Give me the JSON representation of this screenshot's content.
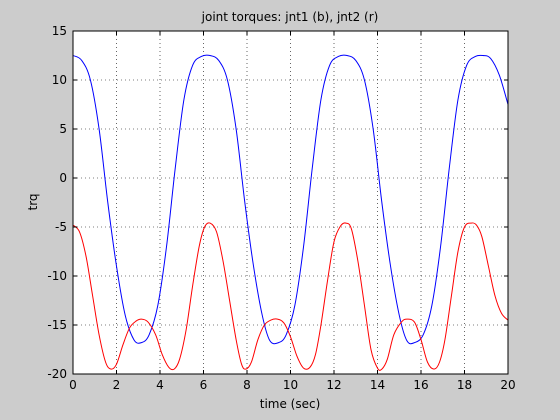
{
  "chart_data": {
    "type": "line",
    "title": "joint torques: jnt1 (b), jnt2 (r)",
    "xlabel": "time (sec)",
    "ylabel": "trq",
    "xlim": [
      0,
      20
    ],
    "ylim": [
      -20,
      15
    ],
    "xticks": [
      0,
      2,
      4,
      6,
      8,
      10,
      12,
      14,
      16,
      18,
      20
    ],
    "yticks": [
      -20,
      -15,
      -10,
      -5,
      0,
      5,
      10,
      15
    ],
    "grid": true,
    "colors": {
      "background": "#cccccc",
      "plot_bg": "#ffffff",
      "axes": "#000000"
    },
    "series": [
      {
        "color": "#0000ff",
        "x": [
          0,
          0.4,
          0.8,
          1.2,
          1.6,
          2.0,
          2.4,
          2.8,
          3.15,
          3.5,
          3.9,
          4.3,
          4.7,
          5.1,
          5.5,
          5.9,
          6.3,
          6.7,
          7.1,
          7.5,
          7.9,
          8.3,
          8.7,
          9.05,
          9.45,
          9.8,
          10.2,
          10.6,
          11.0,
          11.4,
          11.8,
          12.2,
          12.6,
          13.0,
          13.4,
          13.8,
          14.2,
          14.6,
          15.0,
          15.35,
          15.7,
          16.1,
          16.5,
          16.9,
          17.3,
          17.7,
          18.1,
          18.5,
          18.85,
          19.2,
          19.6,
          20.0
        ],
        "y": [
          12.5,
          12.0,
          10.0,
          5.0,
          -2.5,
          -9.0,
          -14.0,
          -16.5,
          -16.8,
          -16.0,
          -13.0,
          -7.0,
          1.0,
          8.0,
          11.5,
          12.4,
          12.5,
          12.0,
          10.0,
          5.0,
          -2.5,
          -9.0,
          -14.0,
          -16.6,
          -16.8,
          -16.0,
          -13.0,
          -7.0,
          1.0,
          8.0,
          11.5,
          12.4,
          12.5,
          12.0,
          10.0,
          5.0,
          -2.5,
          -9.0,
          -14.0,
          -16.6,
          -16.8,
          -16.0,
          -13.0,
          -7.0,
          1.0,
          8.0,
          11.5,
          12.4,
          12.5,
          12.2,
          10.5,
          7.5
        ]
      },
      {
        "color": "#ff0000",
        "x": [
          0,
          0.3,
          0.6,
          0.9,
          1.2,
          1.5,
          1.75,
          2.0,
          2.3,
          2.6,
          2.9,
          3.15,
          3.45,
          3.8,
          4.1,
          4.4,
          4.65,
          4.9,
          5.2,
          5.5,
          5.8,
          6.05,
          6.3,
          6.6,
          6.9,
          7.2,
          7.5,
          7.75,
          7.95,
          8.2,
          8.5,
          8.8,
          9.1,
          9.4,
          9.7,
          10.0,
          10.3,
          10.6,
          10.9,
          11.15,
          11.4,
          11.7,
          12.0,
          12.3,
          12.55,
          12.8,
          13.1,
          13.4,
          13.7,
          14.0,
          14.2,
          14.45,
          14.75,
          15.1,
          15.35,
          15.7,
          16.0,
          16.3,
          16.6,
          16.85,
          17.1,
          17.4,
          17.7,
          18.0,
          18.3,
          18.55,
          18.8,
          19.1,
          19.4,
          19.7,
          20.0
        ],
        "y": [
          -4.8,
          -5.5,
          -8.0,
          -12.0,
          -16.0,
          -18.8,
          -19.5,
          -19.0,
          -17.0,
          -15.3,
          -14.6,
          -14.4,
          -14.7,
          -16.0,
          -18.0,
          -19.3,
          -19.5,
          -18.5,
          -15.5,
          -11.0,
          -7.0,
          -5.0,
          -4.6,
          -5.5,
          -8.5,
          -12.5,
          -16.5,
          -19.0,
          -19.5,
          -18.8,
          -16.5,
          -15.0,
          -14.5,
          -14.4,
          -14.8,
          -16.2,
          -18.2,
          -19.4,
          -19.3,
          -18.0,
          -15.0,
          -10.5,
          -6.5,
          -4.9,
          -4.6,
          -5.2,
          -8.5,
          -13.0,
          -17.5,
          -19.4,
          -19.5,
          -18.5,
          -16.0,
          -14.7,
          -14.4,
          -14.7,
          -16.5,
          -18.8,
          -19.5,
          -18.8,
          -16.5,
          -12.0,
          -7.5,
          -5.0,
          -4.6,
          -4.8,
          -6.0,
          -9.0,
          -12.0,
          -13.8,
          -14.5
        ]
      }
    ]
  }
}
